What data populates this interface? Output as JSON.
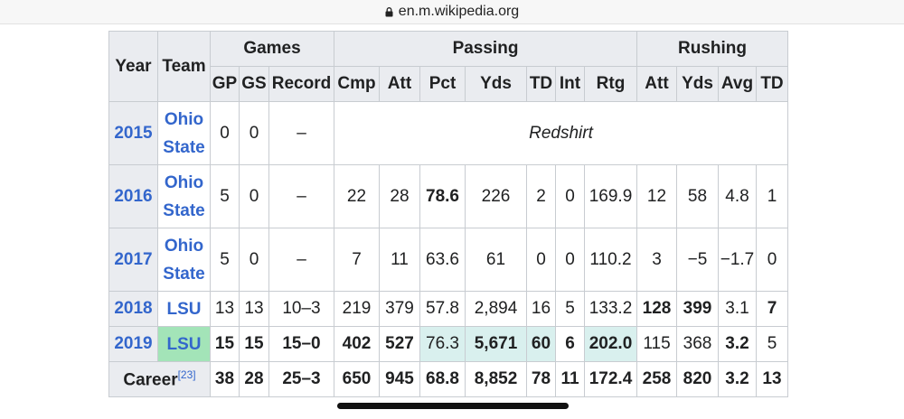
{
  "browser": {
    "url": "en.m.wikipedia.org"
  },
  "table": {
    "headers": {
      "year": "Year",
      "team": "Team",
      "games": "Games",
      "passing": "Passing",
      "rushing": "Rushing",
      "gp": "GP",
      "gs": "GS",
      "record": "Record",
      "cmp": "Cmp",
      "att": "Att",
      "pct": "Pct",
      "yds": "Yds",
      "td": "TD",
      "int": "Int",
      "rtg": "Rtg",
      "r_att": "Att",
      "r_yds": "Yds",
      "r_avg": "Avg",
      "r_td": "TD"
    },
    "rows": [
      {
        "year": "2015",
        "team_line1": "Ohio",
        "team_line2": "State",
        "gp": "0",
        "gs": "0",
        "record": "–",
        "note": "Redshirt"
      },
      {
        "year": "2016",
        "team_line1": "Ohio",
        "team_line2": "State",
        "gp": "5",
        "gs": "0",
        "record": "–",
        "cmp": "22",
        "att": "28",
        "pct": "78.6",
        "yds": "226",
        "td": "2",
        "int": "0",
        "rtg": "169.9",
        "r_att": "12",
        "r_yds": "58",
        "r_avg": "4.8",
        "r_td": "1"
      },
      {
        "year": "2017",
        "team_line1": "Ohio",
        "team_line2": "State",
        "gp": "5",
        "gs": "0",
        "record": "–",
        "cmp": "7",
        "att": "11",
        "pct": "63.6",
        "yds": "61",
        "td": "0",
        "int": "0",
        "rtg": "110.2",
        "r_att": "3",
        "r_yds": "−5",
        "r_avg": "−1.7",
        "r_td": "0"
      },
      {
        "year": "2018",
        "team": "LSU",
        "gp": "13",
        "gs": "13",
        "record": "10–3",
        "cmp": "219",
        "att": "379",
        "pct": "57.8",
        "yds": "2,894",
        "td": "16",
        "int": "5",
        "rtg": "133.2",
        "r_att": "128",
        "r_yds": "399",
        "r_avg": "3.1",
        "r_td": "7"
      },
      {
        "year": "2019",
        "team": "LSU",
        "gp": "15",
        "gs": "15",
        "record": "15–0",
        "cmp": "402",
        "att": "527",
        "pct": "76.3",
        "yds": "5,671",
        "td": "60",
        "int": "6",
        "rtg": "202.0",
        "r_att": "115",
        "r_yds": "368",
        "r_avg": "3.2",
        "r_td": "5"
      }
    ],
    "career": {
      "label": "Career",
      "ref": "[23]",
      "gp": "38",
      "gs": "28",
      "record": "25–3",
      "cmp": "650",
      "att": "945",
      "pct": "68.8",
      "yds": "8,852",
      "td": "78",
      "int": "11",
      "rtg": "172.4",
      "r_att": "258",
      "r_yds": "820",
      "r_avg": "3.2",
      "r_td": "13"
    }
  },
  "colors": {
    "header_bg": "#eaecf0",
    "link": "#3366cc",
    "highlight_teal": "#d9f0ee",
    "highlight_green": "#a3e4b8"
  }
}
